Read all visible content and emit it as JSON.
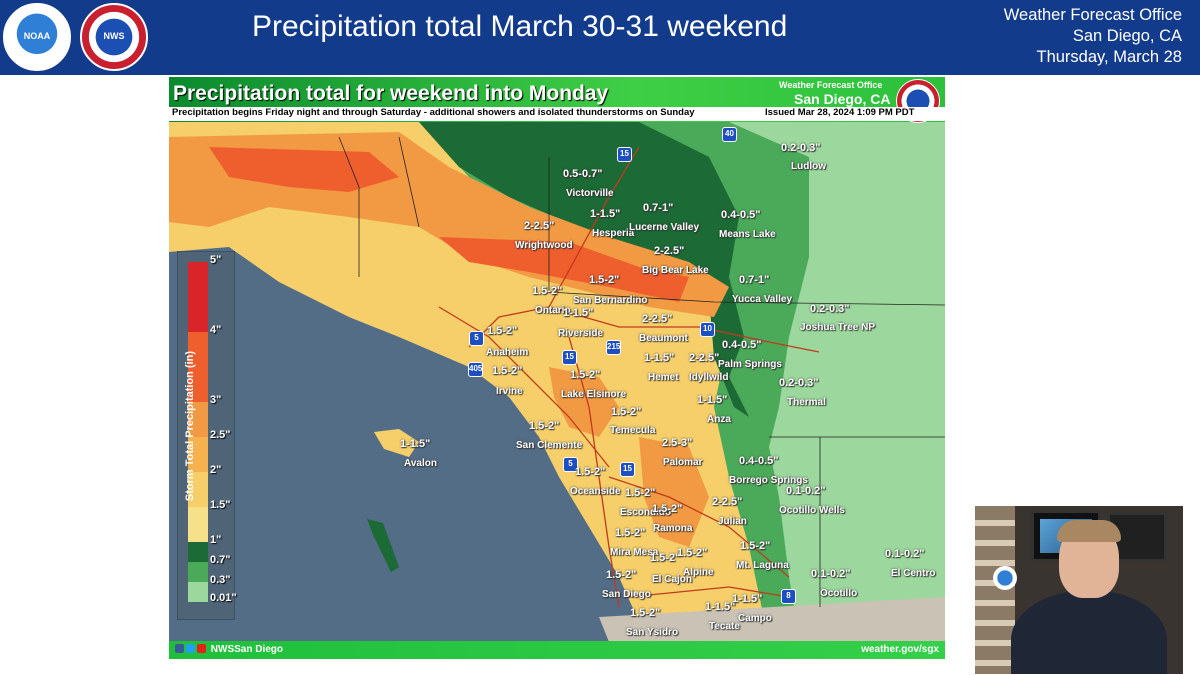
{
  "slide": {
    "title": "Precipitation total March 30-31 weekend",
    "office_line1": "Weather Forecast Office",
    "office_line2": "San Diego, CA",
    "office_line3": "Thursday, March 28",
    "logo_noaa": "NOAA",
    "logo_nws": "NWS"
  },
  "map": {
    "title": "Precipitation total for weekend into Monday",
    "subtitle": "Precipitation begins Friday night and through Saturday - additional showers and isolated thunderstorms on Sunday",
    "issued": "Issued Mar 28, 2024 1:09 PM PDT",
    "office_top": "Weather Forecast Office",
    "office_city": "San Diego, CA",
    "footer_handle": "NWSSan Diego",
    "footer_url": "weather.gov/sgx",
    "colors": {
      "ocean": "#536d87",
      "heavy_orange": "#ef5e2d",
      "orange": "#f29a43",
      "yellow": "#f6cf6a",
      "dark_green": "#1c6a35",
      "mid_green": "#4ba95a",
      "light_green": "#9cd89d",
      "banner_green": "#2cc03b"
    }
  },
  "amounts": [
    {
      "id": "victorville",
      "amount": "0.5-0.7\"",
      "city": "Victorville"
    },
    {
      "id": "ludlow",
      "amount": "0.2-0.3\"",
      "city": "Ludlow"
    },
    {
      "id": "hesperia",
      "amount": "1-1.5\"",
      "city": "Hesperia"
    },
    {
      "id": "lucerne",
      "amount": "0.7-1\"",
      "city": "Lucerne Valley"
    },
    {
      "id": "means",
      "amount": "0.4-0.5\"",
      "city": "Means Lake"
    },
    {
      "id": "wrightwood",
      "amount": "2-2.5\"",
      "city": "Wrightwood"
    },
    {
      "id": "bigbear",
      "amount": "2-2.5\"",
      "city": "Big Bear Lake"
    },
    {
      "id": "yucca",
      "amount": "0.7-1\"",
      "city": "Yucca Valley"
    },
    {
      "id": "joshua",
      "amount": "0.2-0.3\"",
      "city": "Joshua Tree NP"
    },
    {
      "id": "sanbern",
      "amount": "1.5-2\"",
      "city": "San Bernardino"
    },
    {
      "id": "ontario",
      "amount": "1.5-2\"",
      "city": "Ontario"
    },
    {
      "id": "riverside",
      "amount": "1-1.5\"",
      "city": "Riverside"
    },
    {
      "id": "beaumont",
      "amount": "2-2.5\"",
      "city": "Beaumont"
    },
    {
      "id": "anaheim",
      "amount": "1.5-2\"",
      "city": "Anaheim"
    },
    {
      "id": "hemet",
      "amount": "1-1.5\"",
      "city": "Hemet"
    },
    {
      "id": "idyllwild",
      "amount": "2-2.5\"",
      "city": "Idyllwild"
    },
    {
      "id": "palmsprings",
      "amount": "0.4-0.5\"",
      "city": "Palm Springs"
    },
    {
      "id": "irvine",
      "amount": "1.5-2\"",
      "city": "Irvine"
    },
    {
      "id": "elsinore",
      "amount": "1.5-2\"",
      "city": "Lake Elsinore"
    },
    {
      "id": "thermal",
      "amount": "0.2-0.3\"",
      "city": "Thermal"
    },
    {
      "id": "anza",
      "amount": "1-1.5\"",
      "city": "Anza"
    },
    {
      "id": "temecula",
      "amount": "1.5-2\"",
      "city": "Temecula"
    },
    {
      "id": "sanclemente",
      "amount": "1.5-2\"",
      "city": "San Clemente"
    },
    {
      "id": "avalon",
      "amount": "1-1.5\"",
      "city": "Avalon"
    },
    {
      "id": "palomar",
      "amount": "2.5-3\"",
      "city": "Palomar"
    },
    {
      "id": "borrego",
      "amount": "0.4-0.5\"",
      "city": "Borrego Springs"
    },
    {
      "id": "oceanside",
      "amount": "1.5-2\"",
      "city": "Oceanside"
    },
    {
      "id": "ocotillowells",
      "amount": "0.1-0.2\"",
      "city": "Ocotillo Wells"
    },
    {
      "id": "escondido",
      "amount": "1.5-2\"",
      "city": "Escondido"
    },
    {
      "id": "ramona",
      "amount": "1.5-2\"",
      "city": "Ramona"
    },
    {
      "id": "julian",
      "amount": "2-2.5\"",
      "city": "Julian"
    },
    {
      "id": "miramesa",
      "amount": "1.5-2\"",
      "city": "Mira Mesa"
    },
    {
      "id": "mtlaguna",
      "amount": "1.5-2\"",
      "city": "Mt. Laguna"
    },
    {
      "id": "elcajon",
      "amount": "1.5-2\"",
      "city": "El Cajon"
    },
    {
      "id": "alpine",
      "amount": "1.5-2\"",
      "city": "Alpine"
    },
    {
      "id": "elcentro",
      "amount": "0.1-0.2\"",
      "city": "El Centro"
    },
    {
      "id": "sandiego",
      "amount": "1.5-2\"",
      "city": "San Diego"
    },
    {
      "id": "ocotillo",
      "amount": "0.1-0.2\"",
      "city": "Ocotillo"
    },
    {
      "id": "sanysidro",
      "amount": "1.5-2\"",
      "city": "San Ysidro"
    },
    {
      "id": "tecate",
      "amount": "1-1.5\"",
      "city": "Tecate"
    },
    {
      "id": "campo",
      "amount": "1-1.5\"",
      "city": "Campo"
    }
  ],
  "highways": [
    "15",
    "40",
    "10",
    "5",
    "405",
    "15",
    "215",
    "5",
    "15",
    "8"
  ],
  "legend": {
    "title": "Storm Total Precipitation (in)",
    "ticks": [
      "5\"",
      "4\"",
      "3\"",
      "2.5\"",
      "2\"",
      "1.5\"",
      "1\"",
      "0.7\"",
      "0.3\"",
      "0.01\""
    ],
    "tick_values": [
      5,
      4,
      3,
      2.5,
      2,
      1.5,
      1,
      0.7,
      0.3,
      0.01
    ]
  },
  "presenter": {
    "label": "Video presenter inset"
  }
}
